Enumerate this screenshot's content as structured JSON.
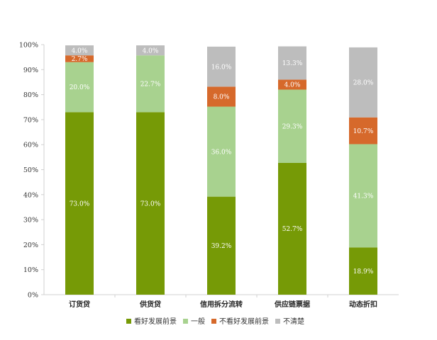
{
  "chart_data": {
    "type": "bar",
    "stacked": true,
    "categories": [
      "订货贷",
      "供货贷",
      "信用拆分流转",
      "供应链票据",
      "动态折扣"
    ],
    "series": [
      {
        "name": "看好发展前景",
        "color": "#769a06",
        "values": [
          73.0,
          73.0,
          39.2,
          52.7,
          18.9
        ]
      },
      {
        "name": "一般",
        "color": "#a8d28f",
        "values": [
          20.0,
          22.7,
          36.0,
          29.3,
          41.3
        ]
      },
      {
        "name": "不看好发展前景",
        "color": "#d6692b",
        "values": [
          2.7,
          null,
          8.0,
          4.0,
          10.7
        ]
      },
      {
        "name": "不清楚",
        "color": "#bdbdbd",
        "values": [
          4.0,
          4.0,
          16.0,
          13.3,
          28.0
        ]
      }
    ],
    "data_labels": [
      [
        "73.0%",
        "73.0%",
        "39.2%",
        "52.7%",
        "18.9%"
      ],
      [
        "20.0%",
        "22.7%",
        "36.0%",
        "29.3%",
        "41.3%"
      ],
      [
        "2.7%",
        "",
        "8.0%",
        "4.0%",
        "10.7%"
      ],
      [
        "4.0%",
        "4.0%",
        "16.0%",
        "13.3%",
        "28.0%"
      ]
    ],
    "ylim": [
      0,
      100
    ],
    "yticks": [
      "0%",
      "10%",
      "20%",
      "30%",
      "40%",
      "50%",
      "60%",
      "70%",
      "80%",
      "90%",
      "100%"
    ],
    "grid": false,
    "legend_position": "bottom"
  }
}
